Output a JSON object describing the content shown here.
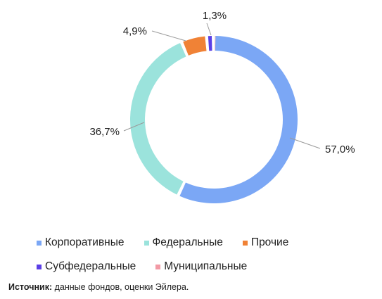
{
  "chart_data": {
    "type": "pie",
    "donut": true,
    "title": "",
    "series": [
      {
        "name": "",
        "values": [
          {
            "category": "Корпоративные",
            "value": 57.0,
            "label": "57,0%",
            "color": "#7BA7F5"
          },
          {
            "category": "Федеральные",
            "value": 36.7,
            "label": "36,7%",
            "color": "#9BE3DC"
          },
          {
            "category": "Прочие",
            "value": 4.9,
            "label": "4,9%",
            "color": "#F08236"
          },
          {
            "category": "Субфедеральные",
            "value": 1.3,
            "label": "1,3%",
            "color": "#5B3FE6"
          },
          {
            "category": "Муниципальные",
            "value": 0.1,
            "label": "",
            "color": "#F29AA5"
          }
        ]
      }
    ],
    "legend_placement": "bottom",
    "start_angle": "top",
    "direction": "clockwise"
  },
  "legend": {
    "row1": [
      {
        "label": "Корпоративные",
        "color": "#7BA7F5"
      },
      {
        "label": "Федеральные",
        "color": "#9BE3DC"
      },
      {
        "label": "Прочие",
        "color": "#F08236"
      }
    ],
    "row2": [
      {
        "label": "Субфедеральные",
        "color": "#5B3FE6"
      },
      {
        "label": "Муниципальные",
        "color": "#F29AA5"
      }
    ]
  },
  "source": {
    "prefix": "Источник:",
    "text": " данные фондов, оценки Эйлера."
  }
}
